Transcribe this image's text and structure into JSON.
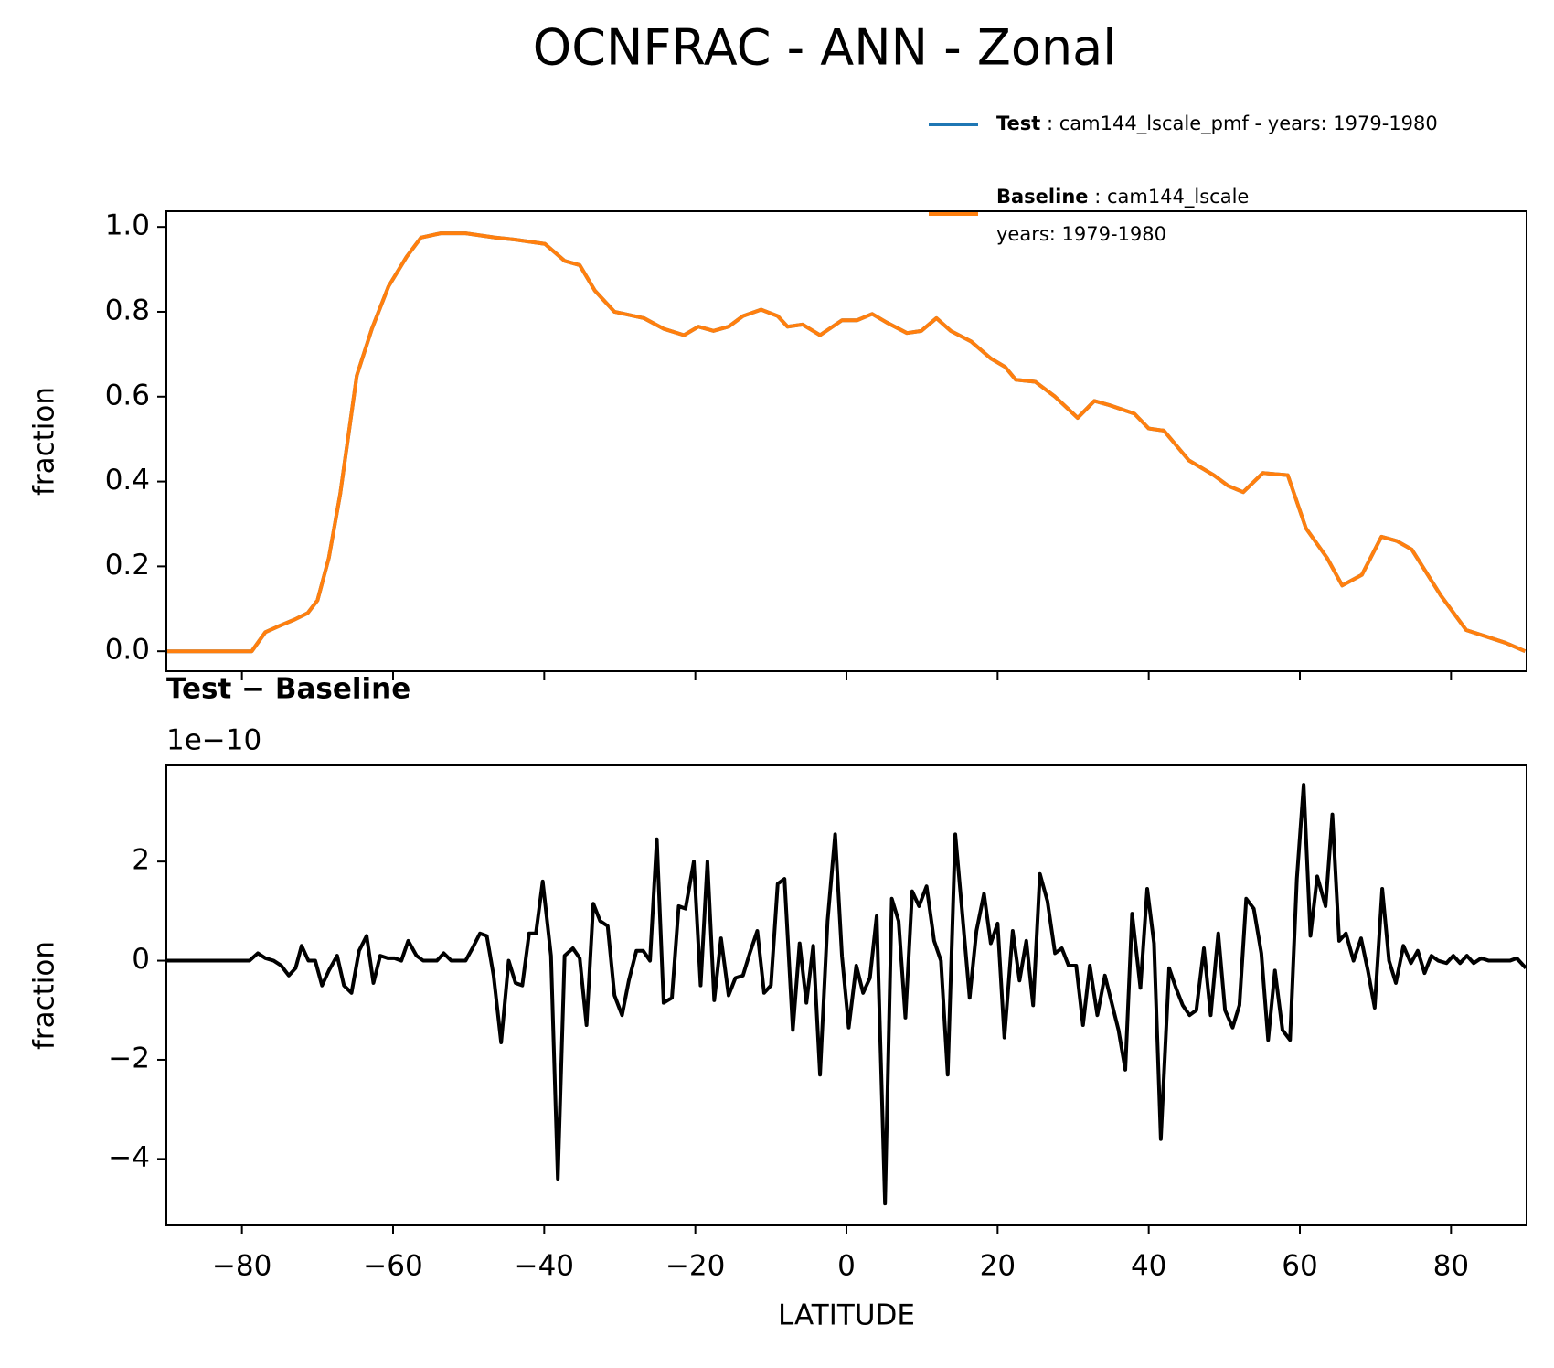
{
  "title": "OCNFRAC - ANN - Zonal",
  "chart_data": [
    {
      "type": "line",
      "ylabel": "fraction",
      "xlim": [
        -90,
        90
      ],
      "xticks": [
        -80,
        -60,
        -40,
        -20,
        0,
        20,
        40,
        60,
        80
      ],
      "ylim": [
        -0.047,
        1.037
      ],
      "yticks": [
        {
          "value": 0,
          "label": "0.0"
        },
        {
          "value": 0.2,
          "label": "0.2"
        },
        {
          "value": 0.4,
          "label": "0.4"
        },
        {
          "value": 0.6,
          "label": "0.6"
        },
        {
          "value": 0.8,
          "label": "0.8"
        },
        {
          "value": 1,
          "label": "1.0"
        }
      ],
      "legend": "upper right outside",
      "x": [
        -90,
        -78.7,
        -76.9,
        -75,
        -73,
        -71.3,
        -70,
        -68.5,
        -67,
        -64.8,
        -62.8,
        -60.6,
        -58.2,
        -56.3,
        -53.7,
        -50.4,
        -46.5,
        -43.8,
        -39.9,
        -38.6,
        -37.3,
        -35.3,
        -33.3,
        -30.7,
        -26.8,
        -24.2,
        -21.5,
        -19.6,
        -17.6,
        -15.6,
        -13.7,
        -11.3,
        -9.1,
        -7.8,
        -5.8,
        -3.5,
        -0.6,
        1.4,
        3.4,
        5.3,
        8,
        9.9,
        11.9,
        13.8,
        16.5,
        19.1,
        21,
        22.4,
        25,
        27.6,
        30.6,
        32.8,
        34.8,
        38.1,
        40,
        42,
        45.3,
        48.6,
        50.5,
        52.5,
        55.1,
        58.4,
        60.8,
        63.6,
        65.6,
        68.2,
        70.8,
        72.8,
        74.8,
        78.7,
        82,
        84.6,
        87.2,
        89.8
      ],
      "series": [
        {
          "name": "Test",
          "label": " : cam144_lscale_pmf - years: 1979-1980",
          "color": "#1f77b4",
          "values": [
            0,
            0,
            0.045,
            0.06,
            0.075,
            0.09,
            0.12,
            0.22,
            0.37,
            0.65,
            0.76,
            0.86,
            0.93,
            0.975,
            0.985,
            0.985,
            0.975,
            0.97,
            0.96,
            0.94,
            0.92,
            0.91,
            0.85,
            0.8,
            0.785,
            0.76,
            0.745,
            0.765,
            0.755,
            0.765,
            0.79,
            0.805,
            0.79,
            0.765,
            0.77,
            0.745,
            0.78,
            0.78,
            0.795,
            0.775,
            0.75,
            0.755,
            0.785,
            0.755,
            0.73,
            0.69,
            0.67,
            0.64,
            0.635,
            0.6,
            0.55,
            0.59,
            0.58,
            0.56,
            0.525,
            0.52,
            0.45,
            0.415,
            0.39,
            0.375,
            0.42,
            0.415,
            0.29,
            0.22,
            0.155,
            0.18,
            0.27,
            0.26,
            0.24,
            0.13,
            0.05,
            0.035,
            0.02,
            0
          ]
        },
        {
          "name": "Baseline",
          "label": [
            " : cam144_lscale",
            "years: 1979-1980"
          ],
          "color": "#ff7f0e",
          "values": [
            0,
            0,
            0.045,
            0.06,
            0.075,
            0.09,
            0.12,
            0.22,
            0.37,
            0.65,
            0.76,
            0.86,
            0.93,
            0.975,
            0.985,
            0.985,
            0.975,
            0.97,
            0.96,
            0.94,
            0.92,
            0.91,
            0.85,
            0.8,
            0.785,
            0.76,
            0.745,
            0.765,
            0.755,
            0.765,
            0.79,
            0.805,
            0.79,
            0.765,
            0.77,
            0.745,
            0.78,
            0.78,
            0.795,
            0.775,
            0.75,
            0.755,
            0.785,
            0.755,
            0.73,
            0.69,
            0.67,
            0.64,
            0.635,
            0.6,
            0.55,
            0.59,
            0.58,
            0.56,
            0.525,
            0.52,
            0.45,
            0.415,
            0.39,
            0.375,
            0.42,
            0.415,
            0.29,
            0.22,
            0.155,
            0.18,
            0.27,
            0.26,
            0.24,
            0.13,
            0.05,
            0.035,
            0.02,
            0
          ]
        }
      ]
    },
    {
      "type": "line",
      "title": "Test − Baseline",
      "offset_label": "1e−10",
      "ylabel": "fraction",
      "xlabel": "LATITUDE",
      "xlim": [
        -90,
        90
      ],
      "xticks": [
        {
          "value": -80,
          "label": "−80"
        },
        {
          "value": -60,
          "label": "−60"
        },
        {
          "value": -40,
          "label": "−40"
        },
        {
          "value": -20,
          "label": "−20"
        },
        0,
        20,
        40,
        60,
        80
      ],
      "ylim": [
        -5.34,
        3.94
      ],
      "yticks": [
        {
          "value": -4,
          "label": "−4"
        },
        {
          "value": -2,
          "label": "−2"
        },
        0,
        2
      ],
      "x": [
        -90,
        -79,
        -77.9,
        -76.9,
        -75.8,
        -74.8,
        -73.8,
        -72.9,
        -72.1,
        -71.2,
        -70.3,
        -69.4,
        -68.5,
        -67.4,
        -66.5,
        -65.5,
        -64.5,
        -63.5,
        -62.6,
        -61.7,
        -60.7,
        -59.8,
        -58.9,
        -58.0,
        -56.9,
        -56.0,
        -55.1,
        -54.2,
        -53.3,
        -52.3,
        -51.4,
        -50.4,
        -49.5,
        -48.5,
        -47.6,
        -46.7,
        -45.7,
        -44.7,
        -43.8,
        -42.9,
        -42.0,
        -41.1,
        -40.2,
        -39.1,
        -38.2,
        -37.3,
        -36.2,
        -35.3,
        -34.4,
        -33.5,
        -32.6,
        -31.6,
        -30.7,
        -29.7,
        -28.8,
        -27.8,
        -26.9,
        -26.0,
        -25.1,
        -24.2,
        -23.1,
        -22.2,
        -21.3,
        -20.2,
        -19.3,
        -18.4,
        -17.5,
        -16.6,
        -15.6,
        -14.7,
        -13.7,
        -12.8,
        -11.8,
        -10.9,
        -10.0,
        -9.1,
        -8.2,
        -7.1,
        -6.2,
        -5.3,
        -4.4,
        -3.5,
        -2.5,
        -1.5,
        -0.6,
        0.3,
        1.3,
        2.2,
        3.1,
        4.0,
        5.1,
        6.0,
        6.9,
        7.8,
        8.7,
        9.6,
        10.6,
        11.6,
        12.5,
        13.4,
        14.4,
        15.3,
        16.3,
        17.2,
        18.2,
        19.1,
        20.0,
        20.9,
        22.0,
        22.9,
        23.8,
        24.7,
        25.6,
        26.6,
        27.6,
        28.5,
        29.4,
        30.4,
        31.3,
        32.2,
        33.2,
        34.2,
        35.1,
        36.0,
        36.9,
        37.8,
        38.9,
        39.8,
        40.7,
        41.6,
        42.7,
        43.6,
        44.5,
        45.4,
        46.3,
        47.3,
        48.2,
        49.2,
        50.1,
        51.1,
        52.0,
        52.9,
        53.9,
        54.9,
        55.8,
        56.7,
        57.7,
        58.7,
        59.6,
        60.5,
        61.4,
        62.3,
        63.4,
        64.3,
        65.2,
        66.1,
        67.1,
        68.1,
        69.0,
        69.9,
        70.9,
        71.8,
        72.7,
        73.7,
        74.7,
        75.6,
        76.5,
        77.4,
        78.3,
        79.4,
        80.3,
        81.2,
        82.1,
        83.0,
        84.0,
        85.0,
        85.9,
        86.8,
        87.8,
        88.7,
        89.9
      ],
      "series": [
        {
          "color": "#000000",
          "values": [
            0,
            0,
            0.15,
            0.05,
            0,
            -0.1,
            -0.3,
            -0.15,
            0.3,
            0,
            0,
            -0.5,
            -0.2,
            0.1,
            -0.5,
            -0.65,
            0.2,
            0.5,
            -0.45,
            0.1,
            0.05,
            0.05,
            0,
            0.4,
            0.1,
            0,
            0,
            0,
            0.15,
            0,
            0,
            0,
            0.25,
            0.55,
            0.5,
            -0.3,
            -1.65,
            0,
            -0.45,
            -0.5,
            0.55,
            0.55,
            1.6,
            0.1,
            -4.4,
            0.1,
            0.25,
            0.05,
            -1.3,
            1.15,
            0.8,
            0.7,
            -0.7,
            -1.1,
            -0.4,
            0.2,
            0.2,
            0,
            2.45,
            -0.85,
            -0.75,
            1.1,
            1.05,
            2.0,
            -0.5,
            2.0,
            -0.8,
            0.45,
            -0.7,
            -0.35,
            -0.3,
            0.15,
            0.6,
            -0.65,
            -0.5,
            1.55,
            1.65,
            -1.4,
            0.35,
            -0.85,
            0.3,
            -2.3,
            0.8,
            2.55,
            0.1,
            -1.35,
            -0.1,
            -0.65,
            -0.35,
            0.9,
            -4.9,
            1.25,
            0.8,
            -1.15,
            1.4,
            1.1,
            1.5,
            0.4,
            0,
            -2.3,
            2.55,
            1.0,
            -0.75,
            0.6,
            1.35,
            0.35,
            0.75,
            -1.55,
            0.6,
            -0.4,
            0.4,
            -0.9,
            1.75,
            1.2,
            0.15,
            0.25,
            -0.1,
            -0.1,
            -1.3,
            -0.1,
            -1.1,
            -0.3,
            -0.85,
            -1.4,
            -2.2,
            0.95,
            -0.55,
            1.45,
            0.35,
            -3.6,
            -0.15,
            -0.55,
            -0.9,
            -1.1,
            -1.0,
            0.25,
            -1.1,
            0.55,
            -1.0,
            -1.35,
            -0.9,
            1.25,
            1.05,
            0.15,
            -1.6,
            -0.2,
            -1.4,
            -1.6,
            1.65,
            3.55,
            0.5,
            1.7,
            1.1,
            2.95,
            0.4,
            0.55,
            0,
            0.45,
            -0.2,
            -0.95,
            1.45,
            0,
            -0.45,
            0.3,
            -0.05,
            0.2,
            -0.25,
            0.1,
            0,
            -0.05,
            0.1,
            -0.05,
            0.1,
            -0.05,
            0.05,
            0,
            0,
            0,
            0,
            0.05,
            -0.15
          ]
        }
      ]
    }
  ]
}
